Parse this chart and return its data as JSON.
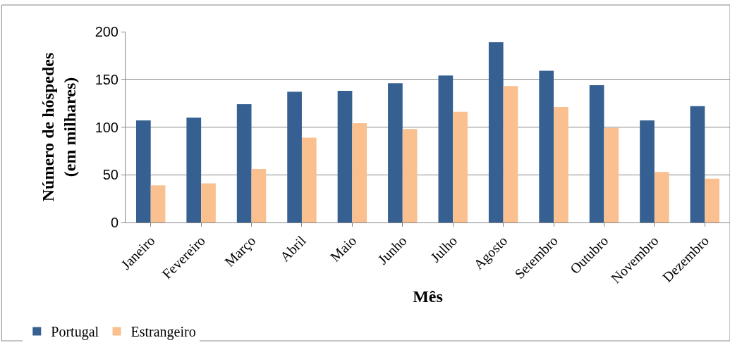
{
  "chart_data": {
    "type": "bar",
    "xlabel": "Mês",
    "ylabel": "Número de hóspedes (em milhares)",
    "categories": [
      "Janeiro",
      "Fevereiro",
      "Março",
      "Abril",
      "Maio",
      "Junho",
      "Julho",
      "Agosto",
      "Setembro",
      "Outubro",
      "Novembro",
      "Dezembro"
    ],
    "series": [
      {
        "name": "Portugal",
        "color": "#376092",
        "values": [
          107,
          110,
          124,
          137,
          138,
          146,
          154,
          189,
          159,
          144,
          107,
          122
        ]
      },
      {
        "name": "Estrangeiro",
        "color": "#fac090",
        "values": [
          39,
          41,
          56,
          89,
          104,
          98,
          116,
          143,
          121,
          99,
          53,
          46
        ]
      }
    ],
    "ylim": [
      0,
      200
    ],
    "yticks": [
      0,
      50,
      100,
      150,
      200
    ],
    "grid": "y",
    "legend": "bottom left"
  }
}
